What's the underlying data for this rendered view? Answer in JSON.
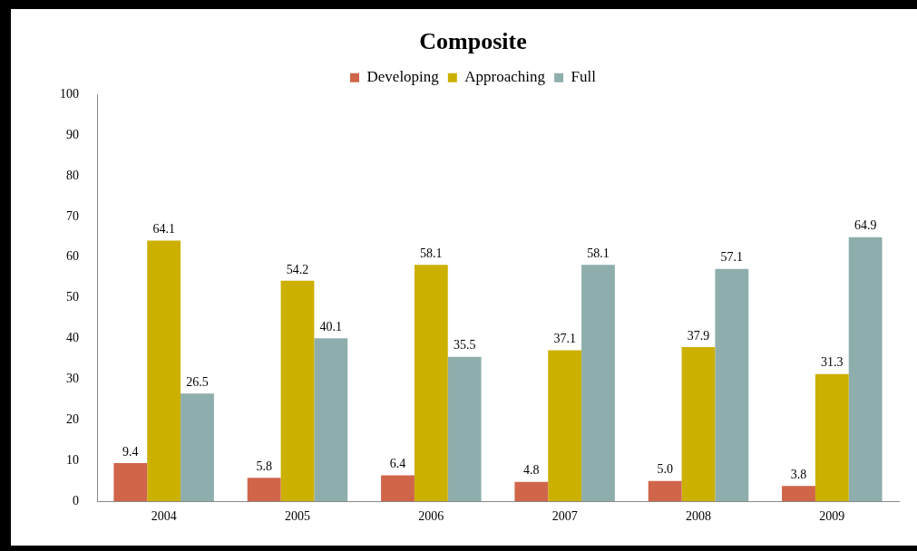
{
  "chart_data": {
    "type": "bar",
    "title": "Composite",
    "categories": [
      "2004",
      "2005",
      "2006",
      "2007",
      "2008",
      "2009"
    ],
    "series": [
      {
        "name": "Developing",
        "color": "#d0654a",
        "values": [
          9.4,
          5.8,
          6.4,
          4.8,
          5.0,
          3.8
        ],
        "value_labels": [
          "9.4",
          "5.8",
          "6.4",
          "4.8",
          "5.0",
          "3.8"
        ]
      },
      {
        "name": "Approaching",
        "color": "#ccb000",
        "values": [
          64.1,
          54.2,
          58.1,
          37.1,
          37.9,
          31.3
        ],
        "value_labels": [
          "64.1",
          "54.2",
          "58.1",
          "37.1",
          "37.9",
          "31.3"
        ]
      },
      {
        "name": "Full",
        "color": "#8eaead",
        "values": [
          26.5,
          40.1,
          35.5,
          58.1,
          57.1,
          64.9
        ],
        "value_labels": [
          "26.5",
          "40.1",
          "35.5",
          "58.1",
          "57.1",
          "64.9"
        ]
      }
    ],
    "ylim": [
      0,
      100
    ],
    "yticks": [
      0,
      10,
      20,
      30,
      40,
      50,
      60,
      70,
      80,
      90,
      100
    ],
    "grid": false,
    "legend": "top"
  }
}
